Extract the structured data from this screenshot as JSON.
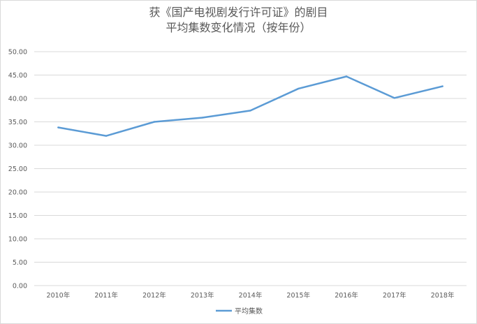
{
  "chart_data": {
    "type": "line",
    "title_lines": [
      "获《国产电视剧发行许可证》的剧目",
      "平均集数变化情况（按年份）"
    ],
    "categories": [
      "2010年",
      "2011年",
      "2012年",
      "2013年",
      "2014年",
      "2015年",
      "2016年",
      "2017年",
      "2018年"
    ],
    "series": [
      {
        "name": "平均集数",
        "values": [
          33.8,
          32.0,
          35.0,
          35.9,
          37.4,
          42.1,
          44.7,
          40.1,
          42.6
        ]
      }
    ],
    "ylim": [
      0,
      50
    ],
    "yticks": [
      "0.00",
      "5.00",
      "10.00",
      "15.00",
      "20.00",
      "25.00",
      "30.00",
      "35.00",
      "40.00",
      "45.00",
      "50.00"
    ],
    "grid": true,
    "legend_position": "bottom",
    "colors": {
      "series": "#5b9bd5",
      "grid": "#d9d9d9",
      "text": "#595959"
    }
  }
}
